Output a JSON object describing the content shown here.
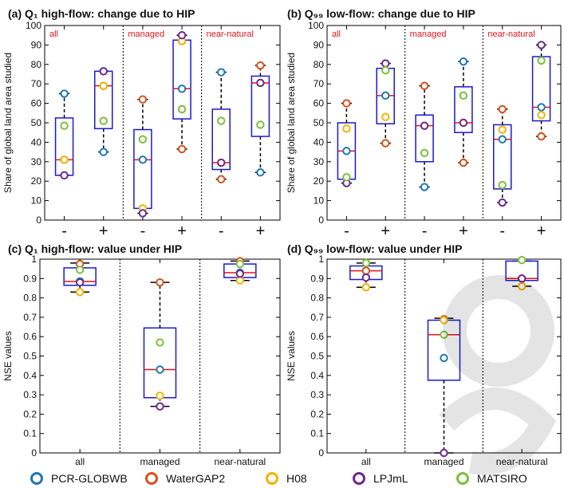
{
  "chart_data": [
    {
      "id": "a",
      "type": "boxplot",
      "title": "(a) Q₁ high-flow: change due to HIP",
      "ylabel": "Share of global land area studied",
      "ylim": [
        0,
        100
      ],
      "yticks": [
        0,
        10,
        20,
        30,
        40,
        50,
        60,
        70,
        80,
        90,
        100
      ],
      "sections": [
        "all",
        "managed",
        "near-natural"
      ],
      "categories": [
        "-",
        "+",
        "-",
        "+",
        "-",
        "+"
      ],
      "boxes": [
        {
          "q1": 23,
          "median": 31,
          "q3": 52.5,
          "whisker_low": 23,
          "whisker_high": 65,
          "points": {
            "PCR-GLOBWB": 65,
            "WaterGAP2": 31,
            "H08": 31,
            "LPJmL": 23,
            "MATSIRO": 48.5
          }
        },
        {
          "q1": 47,
          "median": 69,
          "q3": 76.5,
          "whisker_low": 35,
          "whisker_high": 76.5,
          "points": {
            "PCR-GLOBWB": 35,
            "WaterGAP2": 69,
            "H08": 69,
            "LPJmL": 76.5,
            "MATSIRO": 51
          }
        },
        {
          "q1": 6,
          "median": 31,
          "q3": 46.5,
          "whisker_low": 3.5,
          "whisker_high": 62,
          "points": {
            "PCR-GLOBWB": 31,
            "WaterGAP2": 62,
            "H08": 6,
            "LPJmL": 3.5,
            "MATSIRO": 41.5
          }
        },
        {
          "q1": 52,
          "median": 67.5,
          "q3": 92.5,
          "whisker_low": 36.5,
          "whisker_high": 95,
          "points": {
            "PCR-GLOBWB": 67.5,
            "WaterGAP2": 36.5,
            "H08": 92,
            "LPJmL": 95,
            "MATSIRO": 57
          }
        },
        {
          "q1": 26,
          "median": 29.5,
          "q3": 57,
          "whisker_low": 21,
          "whisker_high": 76,
          "points": {
            "PCR-GLOBWB": 76,
            "WaterGAP2": 21,
            "H08": 29.5,
            "LPJmL": 29.5,
            "MATSIRO": 51
          }
        },
        {
          "q1": 43,
          "median": 70.5,
          "q3": 74,
          "whisker_low": 24.5,
          "whisker_high": 79.5,
          "points": {
            "PCR-GLOBWB": 24.5,
            "WaterGAP2": 79.5,
            "H08": 70.5,
            "LPJmL": 70.5,
            "MATSIRO": 49
          }
        }
      ]
    },
    {
      "id": "b",
      "type": "boxplot",
      "title": "(b) Q₉₉ low-flow: change due to HIP",
      "ylabel": "Share of global land area studied",
      "ylim": [
        0,
        100
      ],
      "yticks": [
        0,
        10,
        20,
        30,
        40,
        50,
        60,
        70,
        80,
        90,
        100
      ],
      "sections": [
        "all",
        "managed",
        "near-natural"
      ],
      "categories": [
        "-",
        "+",
        "-",
        "+",
        "-",
        "+"
      ],
      "boxes": [
        {
          "q1": 21,
          "median": 35.5,
          "q3": 50,
          "whisker_low": 19,
          "whisker_high": 60,
          "points": {
            "PCR-GLOBWB": 35.5,
            "WaterGAP2": 60,
            "H08": 47,
            "LPJmL": 19,
            "MATSIRO": 22
          }
        },
        {
          "q1": 49.5,
          "median": 64,
          "q3": 78,
          "whisker_low": 39.5,
          "whisker_high": 80.5,
          "points": {
            "PCR-GLOBWB": 64,
            "WaterGAP2": 39.5,
            "H08": 53,
            "LPJmL": 80.5,
            "MATSIRO": 77
          }
        },
        {
          "q1": 30,
          "median": 48.5,
          "q3": 54,
          "whisker_low": 17,
          "whisker_high": 69,
          "points": {
            "PCR-GLOBWB": 17,
            "WaterGAP2": 69,
            "H08": 48.5,
            "LPJmL": 48.5,
            "MATSIRO": 34.5
          }
        },
        {
          "q1": 45,
          "median": 50,
          "q3": 68.5,
          "whisker_low": 29.5,
          "whisker_high": 81.5,
          "points": {
            "PCR-GLOBWB": 81.5,
            "WaterGAP2": 29.5,
            "H08": 50,
            "LPJmL": 50,
            "MATSIRO": 64
          }
        },
        {
          "q1": 16,
          "median": 41.5,
          "q3": 49,
          "whisker_low": 9,
          "whisker_high": 57,
          "points": {
            "PCR-GLOBWB": 41.5,
            "WaterGAP2": 57,
            "H08": 46.5,
            "LPJmL": 9,
            "MATSIRO": 18
          }
        },
        {
          "q1": 51,
          "median": 58,
          "q3": 84,
          "whisker_low": 43,
          "whisker_high": 90,
          "points": {
            "PCR-GLOBWB": 58,
            "WaterGAP2": 43,
            "H08": 54,
            "LPJmL": 90,
            "MATSIRO": 82
          }
        }
      ]
    },
    {
      "id": "c",
      "type": "boxplot",
      "title": "(c) Q₁ high-flow: value under HIP",
      "ylabel": "NSE values",
      "ylim": [
        0,
        1
      ],
      "yticks": [
        0,
        0.1,
        0.2,
        0.3,
        0.4,
        0.5,
        0.6,
        0.7,
        0.8,
        0.9,
        1
      ],
      "categories": [
        "all",
        "managed",
        "near-natural"
      ],
      "boxes": [
        {
          "q1": 0.865,
          "median": 0.885,
          "q3": 0.955,
          "whisker_low": 0.83,
          "whisker_high": 0.98,
          "points": {
            "PCR-GLOBWB": 0.885,
            "WaterGAP2": 0.975,
            "H08": 0.83,
            "LPJmL": 0.88,
            "MATSIRO": 0.945
          }
        },
        {
          "q1": 0.285,
          "median": 0.43,
          "q3": 0.645,
          "whisker_low": 0.24,
          "whisker_high": 0.88,
          "points": {
            "PCR-GLOBWB": 0.43,
            "WaterGAP2": 0.88,
            "H08": 0.295,
            "LPJmL": 0.24,
            "MATSIRO": 0.57
          }
        },
        {
          "q1": 0.905,
          "median": 0.93,
          "q3": 0.975,
          "whisker_low": 0.89,
          "whisker_high": 0.99,
          "points": {
            "PCR-GLOBWB": 0.93,
            "WaterGAP2": 0.99,
            "H08": 0.89,
            "LPJmL": 0.925,
            "MATSIRO": 0.975
          }
        }
      ]
    },
    {
      "id": "d",
      "type": "boxplot",
      "title": "(d) Q₉₉ low-flow: value under HIP",
      "ylabel": "NSE values",
      "ylim": [
        0,
        1
      ],
      "yticks": [
        0,
        0.1,
        0.2,
        0.3,
        0.4,
        0.5,
        0.6,
        0.7,
        0.8,
        0.9,
        1
      ],
      "categories": [
        "all",
        "managed",
        "near-natural"
      ],
      "boxes": [
        {
          "q1": 0.895,
          "median": 0.94,
          "q3": 0.965,
          "whisker_low": 0.855,
          "whisker_high": 0.98,
          "points": {
            "PCR-GLOBWB": 0.94,
            "WaterGAP2": 0.94,
            "H08": 0.855,
            "LPJmL": 0.905,
            "MATSIRO": 0.98
          }
        },
        {
          "q1": 0.375,
          "median": 0.61,
          "q3": 0.685,
          "whisker_low": 0.0,
          "whisker_high": 0.695,
          "points": {
            "PCR-GLOBWB": 0.49,
            "WaterGAP2": 0.69,
            "H08": 0.685,
            "LPJmL": 0.0,
            "MATSIRO": 0.61
          }
        },
        {
          "q1": 0.89,
          "median": 0.9,
          "q3": 0.99,
          "whisker_low": 0.86,
          "whisker_high": 0.99,
          "points": {
            "PCR-GLOBWB": 0.9,
            "WaterGAP2": 0.9,
            "H08": 0.86,
            "LPJmL": 0.9,
            "MATSIRO": 0.995
          }
        }
      ]
    }
  ],
  "legend": [
    {
      "name": "PCR-GLOBWB",
      "color": "#1f78b4"
    },
    {
      "name": "WaterGAP2",
      "color": "#d4521e"
    },
    {
      "name": "H08",
      "color": "#f0b400"
    },
    {
      "name": "LPJmL",
      "color": "#6a2b8e"
    },
    {
      "name": "MATSIRO",
      "color": "#7cbf3a"
    }
  ],
  "colors": {
    "box": "#1a1acc",
    "median": "#e0141e",
    "whisker": "#000000",
    "section_label": "#e0141e"
  }
}
